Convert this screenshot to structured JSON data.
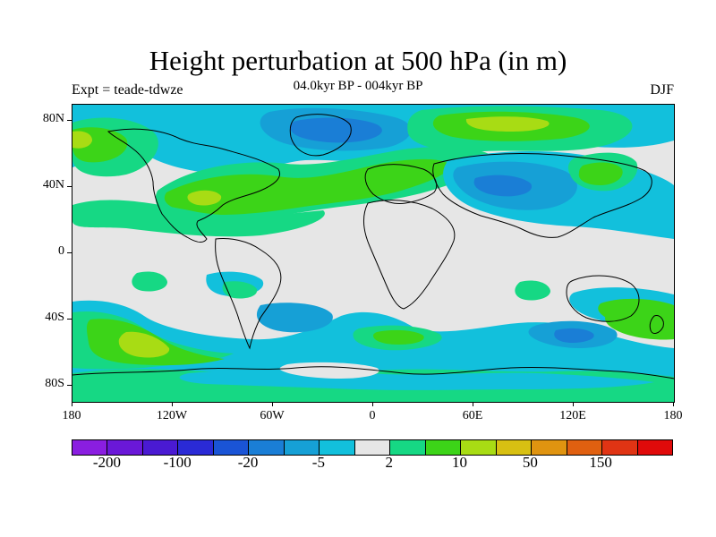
{
  "title": "Height perturbation at 500 hPa (in m)",
  "subtitle": "04.0kyr BP - 004kyr BP",
  "experiment": "Expt = teade-tdwze",
  "season": "DJF",
  "map": {
    "lat_ticks": [
      {
        "label": "80N",
        "lat": 80
      },
      {
        "label": "40N",
        "lat": 40
      },
      {
        "label": "0",
        "lat": 0
      },
      {
        "label": "40S",
        "lat": -40
      },
      {
        "label": "80S",
        "lat": -80
      }
    ],
    "lon_ticks": [
      {
        "label": "180",
        "lon": -180
      },
      {
        "label": "120W",
        "lon": -120
      },
      {
        "label": "60W",
        "lon": -60
      },
      {
        "label": "0",
        "lon": 0
      },
      {
        "label": "60E",
        "lon": 60
      },
      {
        "label": "120E",
        "lon": 120
      },
      {
        "label": "180",
        "lon": 180
      }
    ],
    "background_color": "#e6e6e6"
  },
  "colorbar": {
    "colors": [
      "#8a1ee0",
      "#6a18d8",
      "#4a1ad2",
      "#2a2ad6",
      "#1a54d6",
      "#1a7ed6",
      "#16a0d6",
      "#12c0dc",
      "#e6e6e6",
      "#16d884",
      "#3cd418",
      "#a8dc14",
      "#d8c012",
      "#e09410",
      "#e06010",
      "#e03414",
      "#e00a0a"
    ],
    "labels": [
      {
        "text": "-200",
        "index": 1
      },
      {
        "text": "-100",
        "index": 3
      },
      {
        "text": "-20",
        "index": 5
      },
      {
        "text": "-5",
        "index": 7
      },
      {
        "text": "2",
        "index": 9
      },
      {
        "text": "10",
        "index": 11
      },
      {
        "text": "50",
        "index": 13
      },
      {
        "text": "150",
        "index": 15
      }
    ]
  }
}
